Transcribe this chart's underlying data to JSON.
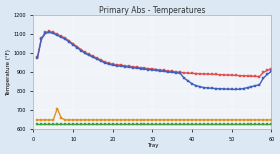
{
  "title": "Primary Abs - Temperatures",
  "xlabel": "Tray",
  "ylabel": "Temperature (°F)",
  "background_color": "#dce9f5",
  "plot_bg": "#f0f4f8",
  "ylim": [
    600,
    1200
  ],
  "xlim": [
    0,
    60
  ],
  "yticks": [
    600,
    700,
    800,
    900,
    1000,
    1100,
    1200
  ],
  "xticks": [
    0,
    10,
    20,
    30,
    40,
    50,
    60
  ],
  "red_line": {
    "x": [
      1,
      2,
      3,
      4,
      5,
      6,
      7,
      8,
      9,
      10,
      11,
      12,
      13,
      14,
      15,
      16,
      17,
      18,
      19,
      20,
      21,
      22,
      23,
      24,
      25,
      26,
      27,
      28,
      29,
      30,
      31,
      32,
      33,
      34,
      35,
      36,
      37,
      38,
      39,
      40,
      41,
      42,
      43,
      44,
      45,
      46,
      47,
      48,
      49,
      50,
      51,
      52,
      53,
      54,
      55,
      56,
      57,
      58,
      59,
      60
    ],
    "y": [
      980,
      1080,
      1110,
      1115,
      1110,
      1100,
      1090,
      1080,
      1065,
      1050,
      1035,
      1020,
      1005,
      995,
      985,
      975,
      965,
      955,
      948,
      943,
      940,
      938,
      935,
      932,
      930,
      927,
      925,
      922,
      920,
      918,
      915,
      912,
      910,
      907,
      905,
      903,
      900,
      898,
      896,
      895,
      894,
      893,
      892,
      891,
      890,
      889,
      888,
      887,
      886,
      885,
      884,
      883,
      882,
      881,
      880,
      879,
      878,
      900,
      910,
      920
    ]
  },
  "blue_line": {
    "x": [
      1,
      2,
      3,
      4,
      5,
      6,
      7,
      8,
      9,
      10,
      11,
      12,
      13,
      14,
      15,
      16,
      17,
      18,
      19,
      20,
      21,
      22,
      23,
      24,
      25,
      26,
      27,
      28,
      29,
      30,
      31,
      32,
      33,
      34,
      35,
      36,
      37,
      38,
      39,
      40,
      41,
      42,
      43,
      44,
      45,
      46,
      47,
      48,
      49,
      50,
      51,
      52,
      53,
      54,
      55,
      56,
      57,
      58,
      59,
      60
    ],
    "y": [
      975,
      1075,
      1105,
      1110,
      1105,
      1095,
      1085,
      1075,
      1060,
      1045,
      1030,
      1015,
      1000,
      990,
      980,
      970,
      960,
      950,
      943,
      938,
      935,
      933,
      930,
      927,
      925,
      922,
      920,
      917,
      915,
      913,
      910,
      907,
      905,
      902,
      900,
      898,
      895,
      870,
      855,
      840,
      830,
      825,
      820,
      818,
      816,
      815,
      814,
      813,
      812,
      811,
      810,
      812,
      815,
      820,
      825,
      830,
      835,
      870,
      890,
      905
    ]
  },
  "orange_line": {
    "x": [
      1,
      2,
      3,
      4,
      5,
      6,
      7,
      8,
      9,
      10,
      11,
      12,
      13,
      14,
      15,
      16,
      17,
      18,
      19,
      20,
      21,
      22,
      23,
      24,
      25,
      26,
      27,
      28,
      29,
      30,
      31,
      32,
      33,
      34,
      35,
      36,
      37,
      38,
      39,
      40,
      41,
      42,
      43,
      44,
      45,
      46,
      47,
      48,
      49,
      50,
      51,
      52,
      53,
      54,
      55,
      56,
      57,
      58,
      59,
      60
    ],
    "y": [
      650,
      650,
      650,
      650,
      650,
      710,
      660,
      650,
      650,
      650,
      650,
      650,
      650,
      650,
      650,
      650,
      650,
      650,
      650,
      650,
      650,
      650,
      650,
      650,
      650,
      650,
      650,
      650,
      650,
      650,
      650,
      650,
      650,
      650,
      650,
      650,
      650,
      650,
      650,
      650,
      650,
      650,
      650,
      650,
      650,
      650,
      650,
      650,
      650,
      650,
      650,
      650,
      650,
      650,
      650,
      650,
      650,
      650,
      650,
      650
    ]
  },
  "green_line": {
    "x": [
      1,
      2,
      3,
      4,
      5,
      6,
      7,
      8,
      9,
      10,
      11,
      12,
      13,
      14,
      15,
      16,
      17,
      18,
      19,
      20,
      21,
      22,
      23,
      24,
      25,
      26,
      27,
      28,
      29,
      30,
      31,
      32,
      33,
      34,
      35,
      36,
      37,
      38,
      39,
      40,
      41,
      42,
      43,
      44,
      45,
      46,
      47,
      48,
      49,
      50,
      51,
      52,
      53,
      54,
      55,
      56,
      57,
      58,
      59,
      60
    ],
    "y": [
      630,
      630,
      630,
      630,
      630,
      630,
      630,
      630,
      630,
      630,
      630,
      630,
      630,
      630,
      630,
      630,
      630,
      630,
      630,
      630,
      630,
      630,
      630,
      630,
      630,
      630,
      630,
      630,
      630,
      630,
      630,
      630,
      630,
      630,
      630,
      630,
      630,
      630,
      630,
      630,
      630,
      630,
      630,
      630,
      630,
      630,
      630,
      630,
      630,
      630,
      630,
      630,
      630,
      630,
      630,
      630,
      630,
      630,
      630,
      630
    ]
  },
  "red_color": "#e05050",
  "blue_color": "#4060c0",
  "orange_color": "#e09020",
  "green_color": "#40a040",
  "marker_size": 2,
  "line_width": 1.0,
  "title_fontsize": 5.5,
  "axis_fontsize": 4,
  "tick_fontsize": 3.5
}
